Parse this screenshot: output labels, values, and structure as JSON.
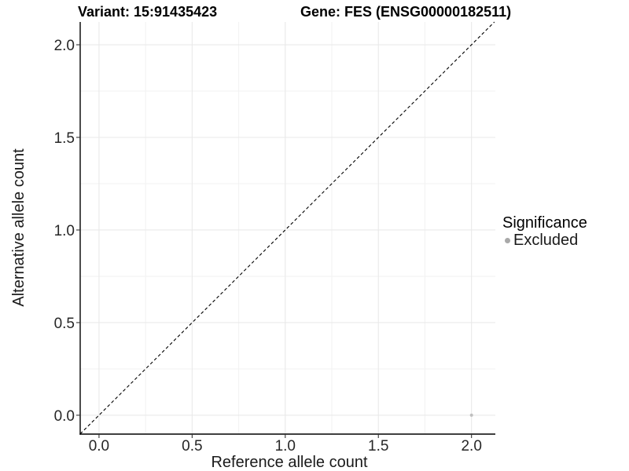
{
  "chart_data": {
    "type": "scatter",
    "titles": {
      "variant": "Variant: 15:91435423",
      "gene": "Gene: FES (ENSG00000182511)"
    },
    "xlabel": "Reference allele count",
    "ylabel": "Alternative allele count",
    "xlim": [
      -0.101,
      2.128
    ],
    "ylim": [
      -0.102,
      2.123
    ],
    "x_ticks": {
      "values": [
        0,
        0.5,
        1,
        1.5,
        2
      ],
      "labels": [
        "0.0",
        "0.5",
        "1.0",
        "1.5",
        "2.0"
      ]
    },
    "y_ticks": {
      "values": [
        0,
        0.5,
        1,
        1.5,
        2
      ],
      "labels": [
        "0.0",
        "0.5",
        "1.0",
        "1.5",
        "2.0"
      ]
    },
    "x_minor": [
      0.25,
      0.75,
      1.25,
      1.75
    ],
    "y_minor": [
      0.25,
      0.75,
      1.25,
      1.75
    ],
    "grid": {
      "major_color": "#e9e9e9",
      "minor_color": "#f2f2f2",
      "background": "#ffffff"
    },
    "axis_line_color": "#000000",
    "tick_mark_color": "#333333",
    "reference_line": {
      "slope": 1,
      "intercept": 0,
      "linetype": "dashed",
      "color": "#000000"
    },
    "series": [
      {
        "name": "Excluded",
        "color": "#bfbfbf",
        "point_radius": 2,
        "points": [
          {
            "x": 2,
            "y": 0
          }
        ]
      }
    ],
    "legend": {
      "title": "Significance",
      "position": "right",
      "items": [
        {
          "label": "Excluded",
          "marker_color": "#a9a9a9"
        }
      ]
    }
  }
}
